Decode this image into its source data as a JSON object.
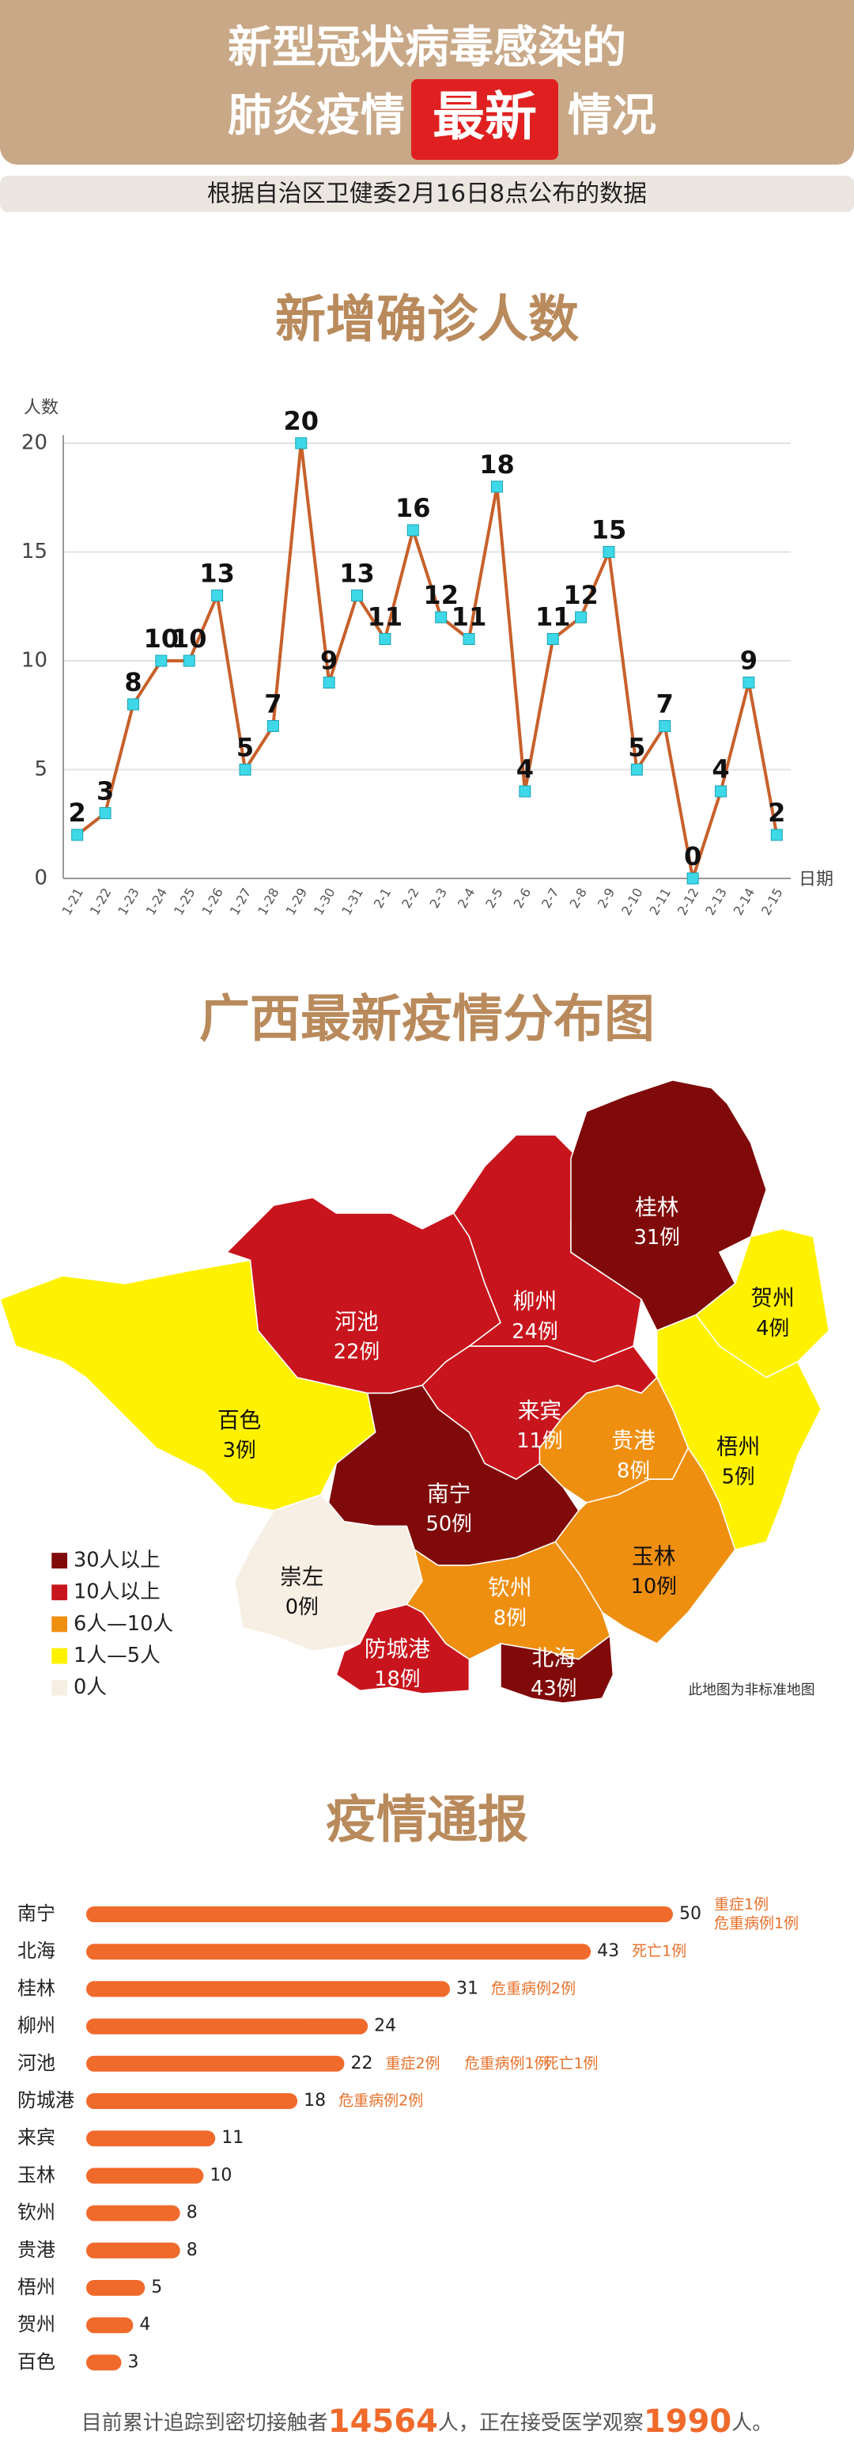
{
  "header": {
    "title_line1": "新型冠状病毒感染的",
    "title_line2": [
      "肺炎疫情",
      "最新",
      "情况"
    ],
    "subtitle": "根据自治区卫健委2月16日8点公布的数据"
  },
  "chart_data": [
    {
      "type": "line",
      "title": "新增确诊人数",
      "y_label": "人数",
      "x_label": "日期",
      "categories": [
        "1-21",
        "1-22",
        "1-23",
        "1-24",
        "1-25",
        "1-26",
        "1-27",
        "1-28",
        "1-29",
        "1-30",
        "1-31",
        "2-1",
        "2-2",
        "2-3",
        "2-4",
        "2-5",
        "2-6",
        "2-7",
        "2-8",
        "2-9",
        "2-10",
        "2-11",
        "2-12",
        "2-13",
        "2-14",
        "2-15"
      ],
      "values": [
        2,
        3,
        8,
        10,
        10,
        13,
        5,
        7,
        20,
        9,
        13,
        11,
        16,
        12,
        11,
        18,
        4,
        11,
        12,
        15,
        5,
        7,
        0,
        4,
        9,
        2
      ],
      "color": "#c8602a",
      "marker_color": "#3fd8e8",
      "ylim": [
        0,
        20
      ],
      "yticks": [
        0,
        5,
        10,
        15,
        20
      ],
      "grid": true
    },
    {
      "type": "bar",
      "orientation": "horizontal",
      "title": "疫情通报",
      "categories": [
        "南宁",
        "北海",
        "桂林",
        "柳州",
        "河池",
        "防城港",
        "来宾",
        "玉林",
        "钦州",
        "贵港",
        "梧州",
        "贺州",
        "百色"
      ],
      "values": [
        50,
        43,
        31,
        24,
        22,
        18,
        11,
        10,
        8,
        8,
        5,
        4,
        3
      ],
      "color": "#f06a2c",
      "notes": [
        [
          "重症1例",
          "危重病例1例"
        ],
        [
          "死亡1例"
        ],
        [
          "危重病例2例"
        ],
        [],
        [
          "重症2例",
          "危重病例1例",
          "死亡1例"
        ],
        [
          "危重病例2例"
        ],
        [],
        [],
        [],
        [],
        [],
        [],
        []
      ]
    }
  ],
  "map": {
    "title": "广西最新疫情分布图",
    "note": "此地图为非标准地图",
    "regions": [
      {
        "name": "百色",
        "cases": "3例",
        "color": "#fff200"
      },
      {
        "name": "河池",
        "cases": "22例",
        "color": "#c8141c"
      },
      {
        "name": "柳州",
        "cases": "24例",
        "color": "#c8141c"
      },
      {
        "name": "桂林",
        "cases": "31例",
        "color": "#800a0a"
      },
      {
        "name": "贺州",
        "cases": "4例",
        "color": "#fff200"
      },
      {
        "name": "梧州",
        "cases": "5例",
        "color": "#fff200"
      },
      {
        "name": "来宾",
        "cases": "11例",
        "color": "#c8141c"
      },
      {
        "name": "贵港",
        "cases": "8例",
        "color": "#ef8f10"
      },
      {
        "name": "南宁",
        "cases": "50例",
        "color": "#800a0a"
      },
      {
        "name": "崇左",
        "cases": "0例",
        "color": "#f7efe4"
      },
      {
        "name": "玉林",
        "cases": "10例",
        "color": "#ef8f10"
      },
      {
        "name": "钦州",
        "cases": "8例",
        "color": "#ef8f10"
      },
      {
        "name": "防城港",
        "cases": "18例",
        "color": "#c8141c"
      },
      {
        "name": "北海",
        "cases": "43例",
        "color": "#800a0a"
      }
    ],
    "legend": [
      {
        "label": "30人以上",
        "color": "#800a0a"
      },
      {
        "label": "10人以上",
        "color": "#c8141c"
      },
      {
        "label": "6人—10人",
        "color": "#ef8f10"
      },
      {
        "label": "1人—5人",
        "color": "#fff200"
      },
      {
        "label": "0人",
        "color": "#f7efe4"
      }
    ]
  },
  "footer": {
    "text1": "目前累计追踪到密切接触者",
    "contacts": 14564,
    "text2": "人，正在接受医学观察",
    "observed": 1990,
    "text3": "人。"
  }
}
